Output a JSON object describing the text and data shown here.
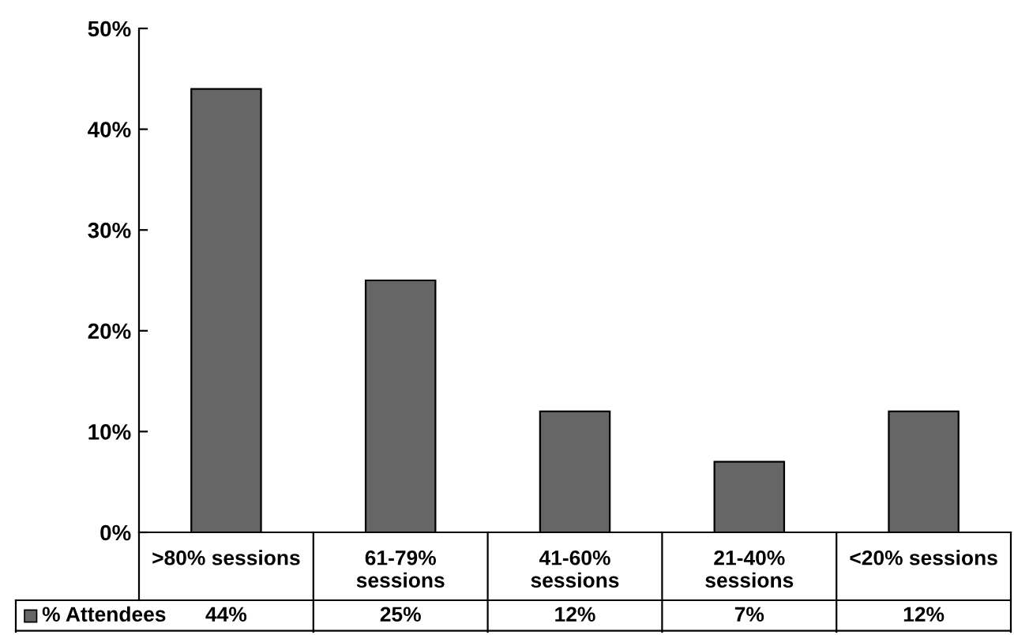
{
  "chart_data": {
    "type": "bar",
    "categories": [
      ">80% sessions",
      "61-79%\nsessions",
      "41-60%\nsessions",
      "21-40%\nsessions",
      "<20% sessions"
    ],
    "series": [
      {
        "name": "% Attendees",
        "color": "#666666",
        "values": [
          44,
          25,
          12,
          7,
          12
        ],
        "value_labels": [
          "44%",
          "25%",
          "12%",
          "7%",
          "12%"
        ]
      }
    ],
    "ylim": [
      0,
      50
    ],
    "yticks": [
      {
        "value": 0,
        "label": "0%"
      },
      {
        "value": 10,
        "label": "10%"
      },
      {
        "value": 20,
        "label": "20%"
      },
      {
        "value": 30,
        "label": "30%"
      },
      {
        "value": 40,
        "label": "40%"
      },
      {
        "value": 50,
        "label": "50%"
      }
    ],
    "grid": false,
    "legend": "bottom"
  }
}
